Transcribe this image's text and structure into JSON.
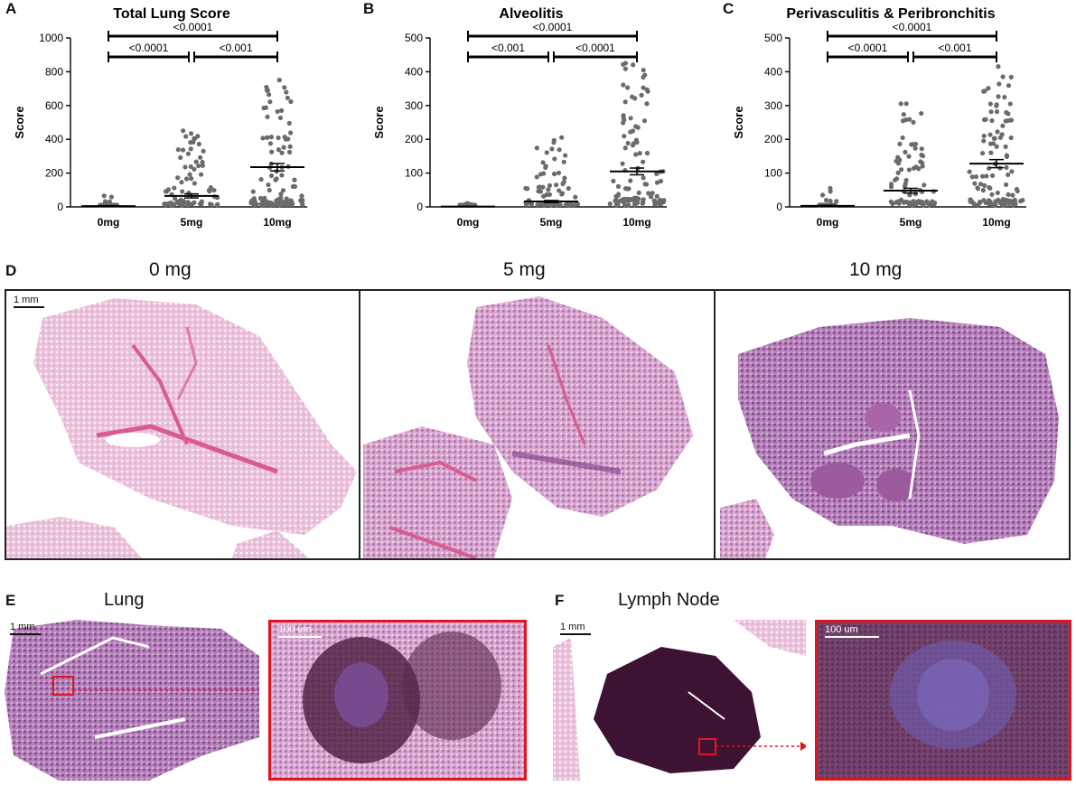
{
  "chart_data": [
    {
      "type": "scatter",
      "panel": "A",
      "title": "Total Lung Score",
      "ylabel": "Score",
      "categories": [
        "0mg",
        "5mg",
        "10mg"
      ],
      "ylim": [
        0,
        1000
      ],
      "yticks": [
        "0",
        "200",
        "400",
        "600",
        "800",
        "1000"
      ],
      "mean": [
        5,
        65,
        235
      ],
      "sem": [
        2,
        12,
        22
      ],
      "max": [
        55,
        440,
        740
      ],
      "n": [
        30,
        80,
        110
      ],
      "comparisons": [
        {
          "groups": [
            "0mg",
            "10mg"
          ],
          "p": "<0.0001"
        },
        {
          "groups": [
            "0mg",
            "5mg"
          ],
          "p": "<0.0001"
        },
        {
          "groups": [
            "5mg",
            "10mg"
          ],
          "p": "<0.001"
        }
      ]
    },
    {
      "type": "scatter",
      "panel": "B",
      "title": "Alveolitis",
      "ylabel": "Score",
      "categories": [
        "0mg",
        "5mg",
        "10mg"
      ],
      "ylim": [
        0,
        500
      ],
      "yticks": [
        "0",
        "100",
        "200",
        "300",
        "400",
        "500"
      ],
      "mean": [
        1,
        16,
        105
      ],
      "sem": [
        0.5,
        3,
        10
      ],
      "max": [
        5,
        200,
        420
      ],
      "n": [
        30,
        80,
        110
      ],
      "comparisons": [
        {
          "groups": [
            "0mg",
            "10mg"
          ],
          "p": "<0.0001"
        },
        {
          "groups": [
            "0mg",
            "5mg"
          ],
          "p": "<0.001"
        },
        {
          "groups": [
            "5mg",
            "10mg"
          ],
          "p": "<0.0001"
        }
      ]
    },
    {
      "type": "scatter",
      "panel": "C",
      "title": "Perivasculitis & Peribronchitis",
      "ylabel": "Score",
      "categories": [
        "0mg",
        "5mg",
        "10mg"
      ],
      "ylim": [
        0,
        500
      ],
      "yticks": [
        "0",
        "100",
        "200",
        "300",
        "400",
        "500"
      ],
      "mean": [
        3,
        48,
        128
      ],
      "sem": [
        1.5,
        7,
        12
      ],
      "max": [
        50,
        300,
        410
      ],
      "n": [
        30,
        80,
        110
      ],
      "comparisons": [
        {
          "groups": [
            "0mg",
            "10mg"
          ],
          "p": "<0.0001"
        },
        {
          "groups": [
            "0mg",
            "5mg"
          ],
          "p": "<0.0001"
        },
        {
          "groups": [
            "5mg",
            "10mg"
          ],
          "p": "<0.001"
        }
      ]
    }
  ],
  "panel_d": {
    "letter": "D",
    "columns": [
      "0 mg",
      "5 mg",
      "10 mg"
    ],
    "scale_bar": "1 mm"
  },
  "panel_e": {
    "letter": "E",
    "title": "Lung",
    "scale_bar": "1 mm",
    "zoom_scale_bar": "100 um"
  },
  "panel_f": {
    "letter": "F",
    "title": "Lymph Node",
    "scale_bar": "1 mm",
    "zoom_scale_bar": "100 um"
  },
  "colors": {
    "dots": "#6b6b6b",
    "he_pink": "#e7b4d2",
    "he_purple": "#9b5b9e",
    "trichrome_dark": "#4a1d3f",
    "highlight_red": "#e0161e"
  }
}
